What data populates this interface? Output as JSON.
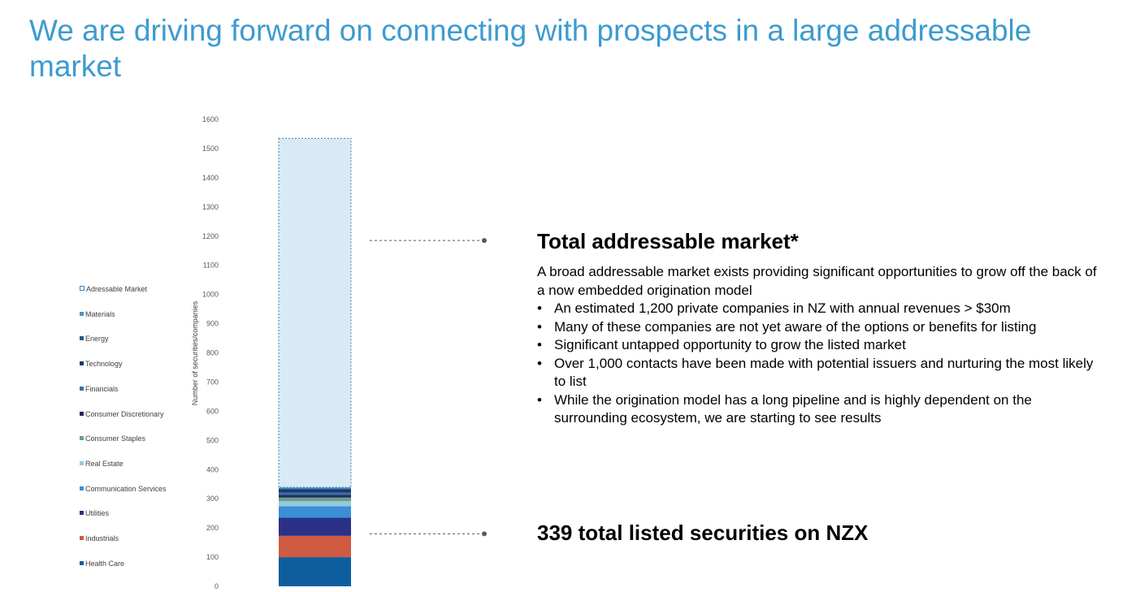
{
  "title": "We are driving forward on connecting with prospects in a large addressable market",
  "chart_data": {
    "type": "bar",
    "stacked": true,
    "categories": [
      ""
    ],
    "ylabel": "Number of securities/companies",
    "xlabel": "",
    "ylim": [
      0,
      1600
    ],
    "yticks": [
      0,
      100,
      200,
      300,
      400,
      500,
      600,
      700,
      800,
      900,
      1000,
      1100,
      1200,
      1300,
      1400,
      1500,
      1600
    ],
    "legend_position": "left",
    "series": [
      {
        "name": "Health Care",
        "values": [
          100
        ],
        "color": "#0e5e9e"
      },
      {
        "name": "Industrials",
        "values": [
          73
        ],
        "color": "#cf5b43"
      },
      {
        "name": "Utilities",
        "values": [
          62
        ],
        "color": "#2b3186"
      },
      {
        "name": "Communication Services",
        "values": [
          39
        ],
        "color": "#3a8fd6"
      },
      {
        "name": "Real Estate",
        "values": [
          18
        ],
        "color": "#93c9e0"
      },
      {
        "name": "Consumer Staples",
        "values": [
          12
        ],
        "color": "#6aa08a"
      },
      {
        "name": "Consumer Discretionary",
        "values": [
          9
        ],
        "color": "#1f2d5c"
      },
      {
        "name": "Financials",
        "values": [
          8
        ],
        "color": "#3d6fa8"
      },
      {
        "name": "Technology",
        "values": [
          10
        ],
        "color": "#17376a"
      },
      {
        "name": "Energy",
        "values": [
          4
        ],
        "color": "#215a8c"
      },
      {
        "name": "Materials",
        "values": [
          4
        ],
        "color": "#4a94c2"
      },
      {
        "name": "Adressable Market",
        "values": [
          1196
        ],
        "color": "#d9eaf7",
        "dashed": true
      }
    ],
    "legend_order": [
      "Adressable Market",
      "Materials",
      "Energy",
      "Technology",
      "Financials",
      "Consumer Discretionary",
      "Consumer Staples",
      "Real Estate",
      "Communication Services",
      "Utilities",
      "Industrials",
      "Health Care"
    ]
  },
  "tam": {
    "heading": "Total addressable market*",
    "description": "A broad addressable market exists providing significant opportunities to grow off the back of a now embedded origination model",
    "bullet_char": "•",
    "bullets": [
      "An estimated 1,200 private companies in NZ with annual revenues > $30m",
      "Many of these companies are not yet aware of the options or benefits for listing",
      "Significant untapped opportunity to grow the listed market",
      "Over 1,000 contacts have been made with potential issuers and nurturing the most likely to list",
      "While the origination model has a long pipeline and is highly dependent on the surrounding ecosystem, we are starting to see results"
    ]
  },
  "nzx": {
    "heading": "339 total listed securities on NZX"
  }
}
